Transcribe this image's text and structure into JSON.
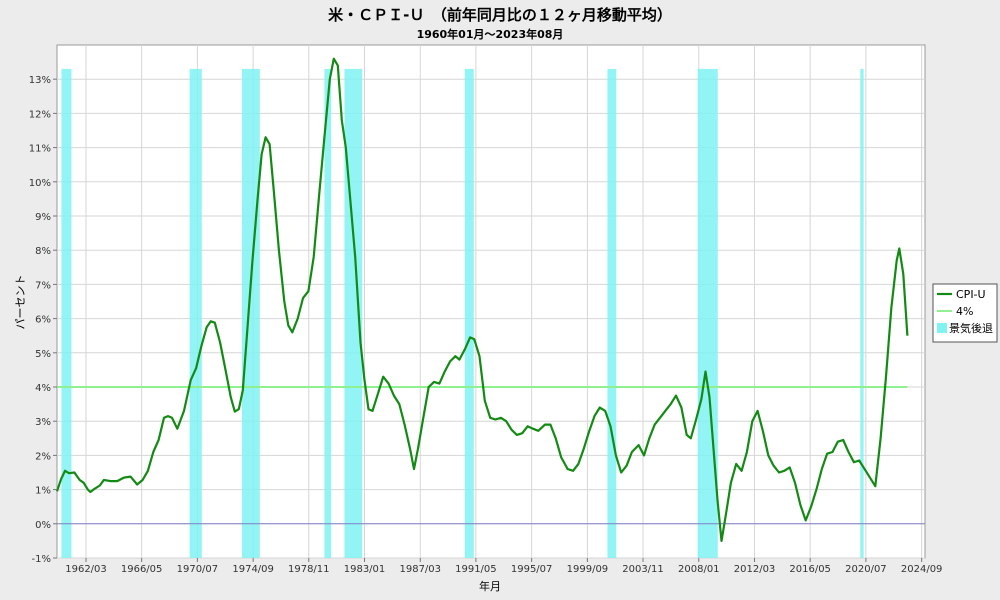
{
  "chart_data": {
    "type": "line",
    "title": "米・ＣＰＩ-Ｕ　（前年同月比の１２ヶ月移動平均）",
    "subtitle": "1960年01月～2023年08月",
    "xlabel": "年月",
    "ylabel": "パーセント",
    "ylim": [
      -1,
      14
    ],
    "xlim": [
      1960.0,
      2024.92
    ],
    "y_ticks": [
      -1,
      0,
      1,
      2,
      3,
      4,
      5,
      6,
      7,
      8,
      9,
      10,
      11,
      12,
      13
    ],
    "y_tick_labels": [
      "-1%",
      "0%",
      "1%",
      "2%",
      "3%",
      "4%",
      "5%",
      "6%",
      "7%",
      "8%",
      "9%",
      "10%",
      "11%",
      "12%",
      "13%"
    ],
    "x_ticks": [
      1962.17,
      1966.33,
      1970.5,
      1974.67,
      1978.83,
      1983.0,
      1987.17,
      1991.33,
      1995.5,
      1999.67,
      2003.83,
      2008.0,
      2012.17,
      2016.33,
      2020.5,
      2024.67
    ],
    "x_tick_labels": [
      "1962/03",
      "1966/05",
      "1970/07",
      "1974/09",
      "1978/11",
      "1983/01",
      "1987/03",
      "1991/05",
      "1995/07",
      "1999/09",
      "2003/11",
      "2008/01",
      "2012/03",
      "2016/05",
      "2020/07",
      "2024/09"
    ],
    "grid": true,
    "legend_position": "right",
    "series": [
      {
        "name": "CPI-U",
        "color": "#138a13",
        "points": [
          [
            1960.0,
            0.95
          ],
          [
            1960.3,
            1.3
          ],
          [
            1960.6,
            1.55
          ],
          [
            1960.9,
            1.48
          ],
          [
            1961.3,
            1.5
          ],
          [
            1961.7,
            1.28
          ],
          [
            1962.0,
            1.2
          ],
          [
            1962.3,
            1.0
          ],
          [
            1962.5,
            0.93
          ],
          [
            1962.8,
            1.02
          ],
          [
            1963.2,
            1.12
          ],
          [
            1963.5,
            1.28
          ],
          [
            1964.0,
            1.25
          ],
          [
            1964.5,
            1.25
          ],
          [
            1965.0,
            1.35
          ],
          [
            1965.5,
            1.38
          ],
          [
            1966.0,
            1.15
          ],
          [
            1966.4,
            1.28
          ],
          [
            1966.8,
            1.55
          ],
          [
            1967.2,
            2.1
          ],
          [
            1967.6,
            2.45
          ],
          [
            1968.0,
            3.1
          ],
          [
            1968.3,
            3.15
          ],
          [
            1968.6,
            3.1
          ],
          [
            1969.0,
            2.78
          ],
          [
            1969.5,
            3.3
          ],
          [
            1970.0,
            4.2
          ],
          [
            1970.4,
            4.55
          ],
          [
            1970.8,
            5.2
          ],
          [
            1971.2,
            5.75
          ],
          [
            1971.5,
            5.92
          ],
          [
            1971.8,
            5.88
          ],
          [
            1972.2,
            5.3
          ],
          [
            1972.6,
            4.5
          ],
          [
            1973.0,
            3.7
          ],
          [
            1973.3,
            3.28
          ],
          [
            1973.6,
            3.35
          ],
          [
            1973.9,
            3.9
          ],
          [
            1974.2,
            5.5
          ],
          [
            1974.6,
            7.6
          ],
          [
            1975.0,
            9.5
          ],
          [
            1975.3,
            10.8
          ],
          [
            1975.6,
            11.3
          ],
          [
            1975.9,
            11.1
          ],
          [
            1976.2,
            9.8
          ],
          [
            1976.6,
            8.0
          ],
          [
            1977.0,
            6.5
          ],
          [
            1977.3,
            5.8
          ],
          [
            1977.6,
            5.6
          ],
          [
            1978.0,
            6.0
          ],
          [
            1978.4,
            6.6
          ],
          [
            1978.8,
            6.8
          ],
          [
            1979.2,
            7.8
          ],
          [
            1979.6,
            9.6
          ],
          [
            1980.0,
            11.3
          ],
          [
            1980.4,
            13.0
          ],
          [
            1980.7,
            13.6
          ],
          [
            1981.0,
            13.4
          ],
          [
            1981.3,
            11.8
          ],
          [
            1981.6,
            11.0
          ],
          [
            1982.0,
            9.2
          ],
          [
            1982.3,
            7.8
          ],
          [
            1982.7,
            5.3
          ],
          [
            1983.0,
            4.2
          ],
          [
            1983.3,
            3.35
          ],
          [
            1983.6,
            3.3
          ],
          [
            1984.0,
            3.8
          ],
          [
            1984.4,
            4.3
          ],
          [
            1984.8,
            4.1
          ],
          [
            1985.2,
            3.75
          ],
          [
            1985.6,
            3.5
          ],
          [
            1986.0,
            2.9
          ],
          [
            1986.4,
            2.2
          ],
          [
            1986.7,
            1.6
          ],
          [
            1987.0,
            2.2
          ],
          [
            1987.4,
            3.1
          ],
          [
            1987.8,
            4.0
          ],
          [
            1988.2,
            4.15
          ],
          [
            1988.6,
            4.1
          ],
          [
            1989.0,
            4.45
          ],
          [
            1989.4,
            4.75
          ],
          [
            1989.8,
            4.9
          ],
          [
            1990.1,
            4.8
          ],
          [
            1990.5,
            5.1
          ],
          [
            1990.9,
            5.45
          ],
          [
            1991.2,
            5.4
          ],
          [
            1991.6,
            4.9
          ],
          [
            1992.0,
            3.6
          ],
          [
            1992.4,
            3.1
          ],
          [
            1992.8,
            3.05
          ],
          [
            1993.2,
            3.1
          ],
          [
            1993.6,
            3.0
          ],
          [
            1994.0,
            2.75
          ],
          [
            1994.4,
            2.6
          ],
          [
            1994.8,
            2.65
          ],
          [
            1995.2,
            2.85
          ],
          [
            1995.6,
            2.78
          ],
          [
            1996.0,
            2.72
          ],
          [
            1996.5,
            2.9
          ],
          [
            1996.9,
            2.9
          ],
          [
            1997.3,
            2.5
          ],
          [
            1997.7,
            1.95
          ],
          [
            1998.2,
            1.6
          ],
          [
            1998.6,
            1.55
          ],
          [
            1999.0,
            1.75
          ],
          [
            1999.4,
            2.2
          ],
          [
            1999.8,
            2.7
          ],
          [
            2000.2,
            3.15
          ],
          [
            2000.6,
            3.4
          ],
          [
            2001.0,
            3.3
          ],
          [
            2001.4,
            2.85
          ],
          [
            2001.8,
            2.0
          ],
          [
            2002.2,
            1.5
          ],
          [
            2002.6,
            1.7
          ],
          [
            2003.0,
            2.1
          ],
          [
            2003.5,
            2.3
          ],
          [
            2003.9,
            2.0
          ],
          [
            2004.3,
            2.5
          ],
          [
            2004.7,
            2.9
          ],
          [
            2005.1,
            3.1
          ],
          [
            2005.5,
            3.3
          ],
          [
            2005.9,
            3.5
          ],
          [
            2006.3,
            3.75
          ],
          [
            2006.7,
            3.4
          ],
          [
            2007.1,
            2.6
          ],
          [
            2007.4,
            2.5
          ],
          [
            2007.8,
            3.05
          ],
          [
            2008.2,
            3.65
          ],
          [
            2008.5,
            4.45
          ],
          [
            2008.8,
            3.7
          ],
          [
            2009.1,
            2.2
          ],
          [
            2009.4,
            0.7
          ],
          [
            2009.7,
            -0.5
          ],
          [
            2010.0,
            0.2
          ],
          [
            2010.4,
            1.2
          ],
          [
            2010.8,
            1.75
          ],
          [
            2011.2,
            1.55
          ],
          [
            2011.6,
            2.1
          ],
          [
            2012.0,
            3.0
          ],
          [
            2012.4,
            3.3
          ],
          [
            2012.8,
            2.7
          ],
          [
            2013.2,
            2.0
          ],
          [
            2013.6,
            1.7
          ],
          [
            2014.0,
            1.5
          ],
          [
            2014.4,
            1.55
          ],
          [
            2014.8,
            1.65
          ],
          [
            2015.2,
            1.2
          ],
          [
            2015.6,
            0.55
          ],
          [
            2016.0,
            0.1
          ],
          [
            2016.4,
            0.5
          ],
          [
            2016.8,
            1.0
          ],
          [
            2017.2,
            1.6
          ],
          [
            2017.6,
            2.05
          ],
          [
            2018.0,
            2.1
          ],
          [
            2018.4,
            2.4
          ],
          [
            2018.8,
            2.45
          ],
          [
            2019.2,
            2.1
          ],
          [
            2019.6,
            1.8
          ],
          [
            2020.0,
            1.85
          ],
          [
            2020.4,
            1.6
          ],
          [
            2020.8,
            1.35
          ],
          [
            2021.2,
            1.1
          ],
          [
            2021.6,
            2.5
          ],
          [
            2022.0,
            4.3
          ],
          [
            2022.4,
            6.3
          ],
          [
            2022.8,
            7.7
          ],
          [
            2023.0,
            8.05
          ],
          [
            2023.3,
            7.3
          ],
          [
            2023.6,
            5.5
          ]
        ]
      },
      {
        "name": "4%",
        "color": "#8ef08e",
        "points": [
          [
            1960.0,
            4
          ],
          [
            2023.6,
            4
          ]
        ]
      }
    ],
    "recessions": {
      "name": "景気後退",
      "color": "#7ff2f2",
      "periods": [
        [
          1960.33,
          1961.08
        ],
        [
          1969.92,
          1970.83
        ],
        [
          1973.83,
          1975.17
        ],
        [
          1980.0,
          1980.5
        ],
        [
          1981.5,
          1982.83
        ],
        [
          1990.5,
          1991.17
        ],
        [
          2001.17,
          2001.83
        ],
        [
          2007.92,
          2009.42
        ],
        [
          2020.08,
          2020.33
        ]
      ]
    },
    "zero_line_color": "#8080c8"
  }
}
